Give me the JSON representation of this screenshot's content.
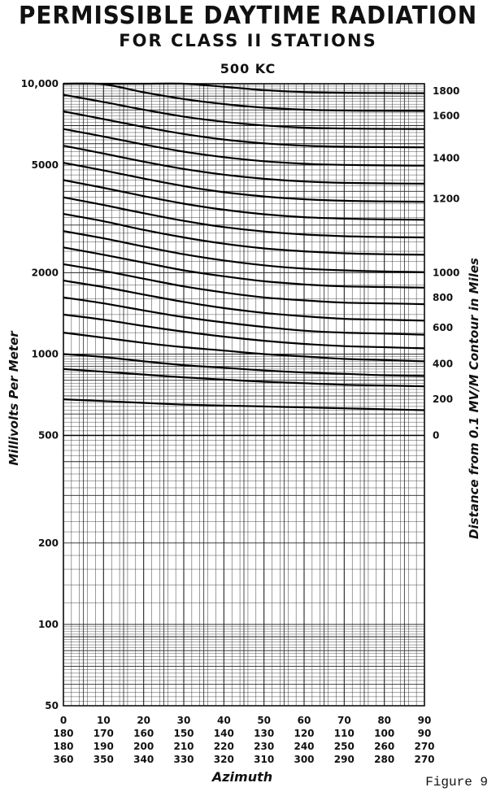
{
  "title": "PERMISSIBLE DAYTIME RADIATION",
  "subtitle": "FOR CLASS II STATIONS",
  "frequency": "500 KC",
  "figure_label": "Figure 9",
  "chart_data": {
    "type": "line",
    "title": "PERMISSIBLE DAYTIME RADIATION",
    "subtitle": "FOR CLASS II STATIONS",
    "xlabel": "Azimuth",
    "ylabel": "Millivolts Per Meter",
    "y2label": "Distance from 0.1 MV/M Contour in Miles",
    "y_scale": "log",
    "ylim": [
      50,
      10000
    ],
    "xlim": [
      0,
      90
    ],
    "grid": true,
    "y_ticks": [
      {
        "value": 10000,
        "label": "10,000"
      },
      {
        "value": 5000,
        "label": "5000"
      },
      {
        "value": 2000,
        "label": "2000"
      },
      {
        "value": 1000,
        "label": "1000"
      },
      {
        "value": 500,
        "label": "500"
      },
      {
        "value": 200,
        "label": "200"
      },
      {
        "value": 100,
        "label": "100"
      },
      {
        "value": 50,
        "label": "50"
      }
    ],
    "x_tick_rows": [
      [
        "0",
        "10",
        "20",
        "30",
        "40",
        "50",
        "60",
        "70",
        "80",
        "90"
      ],
      [
        "180",
        "170",
        "160",
        "150",
        "140",
        "130",
        "120",
        "110",
        "100",
        "90"
      ],
      [
        "180",
        "190",
        "200",
        "210",
        "220",
        "230",
        "240",
        "250",
        "260",
        "270"
      ],
      [
        "360",
        "350",
        "340",
        "330",
        "320",
        "310",
        "300",
        "290",
        "280",
        "270"
      ]
    ],
    "x": [
      0,
      10,
      20,
      30,
      40,
      50,
      60,
      70,
      80,
      90
    ],
    "distance_labels": [
      {
        "label": "1800",
        "value": 9400
      },
      {
        "label": "1600",
        "value": 7600
      },
      {
        "label": "1400",
        "value": 5300
      },
      {
        "label": "1200",
        "value": 3750
      },
      {
        "label": "1000",
        "value": 2000
      },
      {
        "label": "800",
        "value": 1620
      },
      {
        "label": "600",
        "value": 1250
      },
      {
        "label": "400",
        "value": 920
      },
      {
        "label": "200",
        "value": 680
      },
      {
        "label": "0",
        "value": 500
      }
    ],
    "series": [
      {
        "values": [
          500,
          500,
          500,
          500,
          500,
          500,
          500,
          500,
          500,
          500
        ]
      },
      {
        "values": [
          680,
          670,
          660,
          650,
          645,
          640,
          635,
          630,
          625,
          620
        ]
      },
      {
        "values": [
          880,
          860,
          840,
          820,
          805,
          790,
          780,
          770,
          765,
          760
        ]
      },
      {
        "values": [
          1000,
          975,
          940,
          910,
          890,
          870,
          855,
          845,
          835,
          830
        ]
      },
      {
        "values": [
          1200,
          1150,
          1100,
          1060,
          1030,
          1000,
          980,
          960,
          950,
          940
        ]
      },
      {
        "values": [
          1400,
          1340,
          1270,
          1210,
          1160,
          1120,
          1090,
          1070,
          1060,
          1050
        ]
      },
      {
        "values": [
          1620,
          1540,
          1450,
          1370,
          1310,
          1260,
          1220,
          1200,
          1190,
          1180
        ]
      },
      {
        "values": [
          1870,
          1770,
          1660,
          1560,
          1480,
          1420,
          1380,
          1350,
          1340,
          1330
        ]
      },
      {
        "values": [
          2150,
          2030,
          1900,
          1780,
          1690,
          1620,
          1580,
          1550,
          1540,
          1530
        ]
      },
      {
        "values": [
          2480,
          2330,
          2180,
          2040,
          1940,
          1860,
          1810,
          1780,
          1770,
          1760
        ]
      },
      {
        "values": [
          2850,
          2680,
          2500,
          2340,
          2220,
          2130,
          2070,
          2040,
          2020,
          2010
        ]
      },
      {
        "values": [
          3300,
          3100,
          2880,
          2700,
          2560,
          2460,
          2400,
          2360,
          2340,
          2330
        ]
      },
      {
        "values": [
          3800,
          3560,
          3320,
          3110,
          2950,
          2840,
          2770,
          2730,
          2710,
          2700
        ]
      },
      {
        "values": [
          4400,
          4120,
          3840,
          3600,
          3420,
          3290,
          3210,
          3170,
          3150,
          3140
        ]
      },
      {
        "values": [
          5100,
          4780,
          4460,
          4180,
          3970,
          3830,
          3740,
          3690,
          3670,
          3660
        ]
      },
      {
        "values": [
          5900,
          5520,
          5150,
          4840,
          4610,
          4450,
          4350,
          4300,
          4280,
          4270
        ]
      },
      {
        "values": [
          6800,
          6380,
          5960,
          5610,
          5350,
          5170,
          5060,
          5010,
          4990,
          4980
        ]
      },
      {
        "values": [
          7900,
          7400,
          6920,
          6520,
          6220,
          6020,
          5900,
          5850,
          5830,
          5820
        ]
      },
      {
        "values": [
          9100,
          8560,
          8020,
          7560,
          7230,
          7010,
          6880,
          6830,
          6810,
          6800
        ]
      },
      {
        "values": [
          10000,
          9950,
          9300,
          8780,
          8410,
          8160,
          8020,
          7960,
          7940,
          7930
        ]
      },
      {
        "values": [
          10000,
          10000,
          10000,
          10000,
          9750,
          9470,
          9320,
          9260,
          9240,
          9230
        ]
      }
    ]
  }
}
